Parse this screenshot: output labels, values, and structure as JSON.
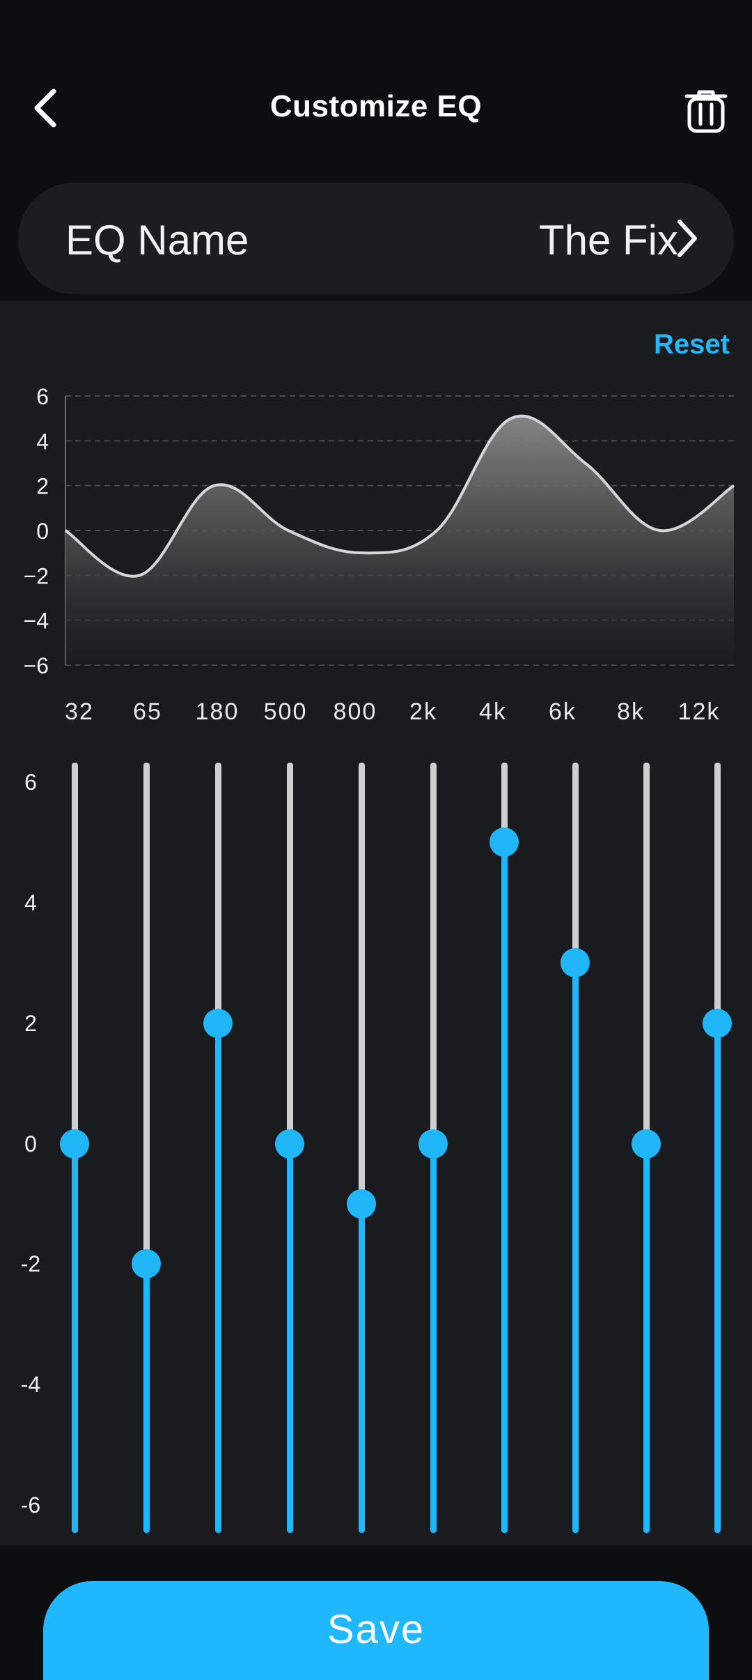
{
  "header": {
    "title": "Customize EQ",
    "back_icon": "chevron-left-icon",
    "delete_icon": "trash-icon"
  },
  "eq_name": {
    "label": "EQ Name",
    "value": "The Fix",
    "chevron_icon": "chevron-right-icon"
  },
  "reset_label": "Reset",
  "colors": {
    "accent": "#21b6f7",
    "track": "#cfcfcf",
    "panel": "#191b1e",
    "background": "#0d0e10"
  },
  "chart_data": {
    "type": "area",
    "categories": [
      "32",
      "65",
      "180",
      "500",
      "800",
      "2k",
      "4k",
      "6k",
      "8k",
      "12k"
    ],
    "values": [
      0,
      -2,
      2,
      0,
      -1,
      0,
      5,
      3,
      0,
      2
    ],
    "ylim": [
      -6,
      6
    ],
    "yticks": [
      "6",
      "4",
      "2",
      "0",
      "−2",
      "−4",
      "−6"
    ],
    "grid": true
  },
  "bands": {
    "ylabels": [
      "6",
      "4",
      "2",
      "0",
      "-2",
      "-4",
      "-6"
    ],
    "ylim": [
      -6,
      6
    ]
  },
  "save_label": "Save"
}
